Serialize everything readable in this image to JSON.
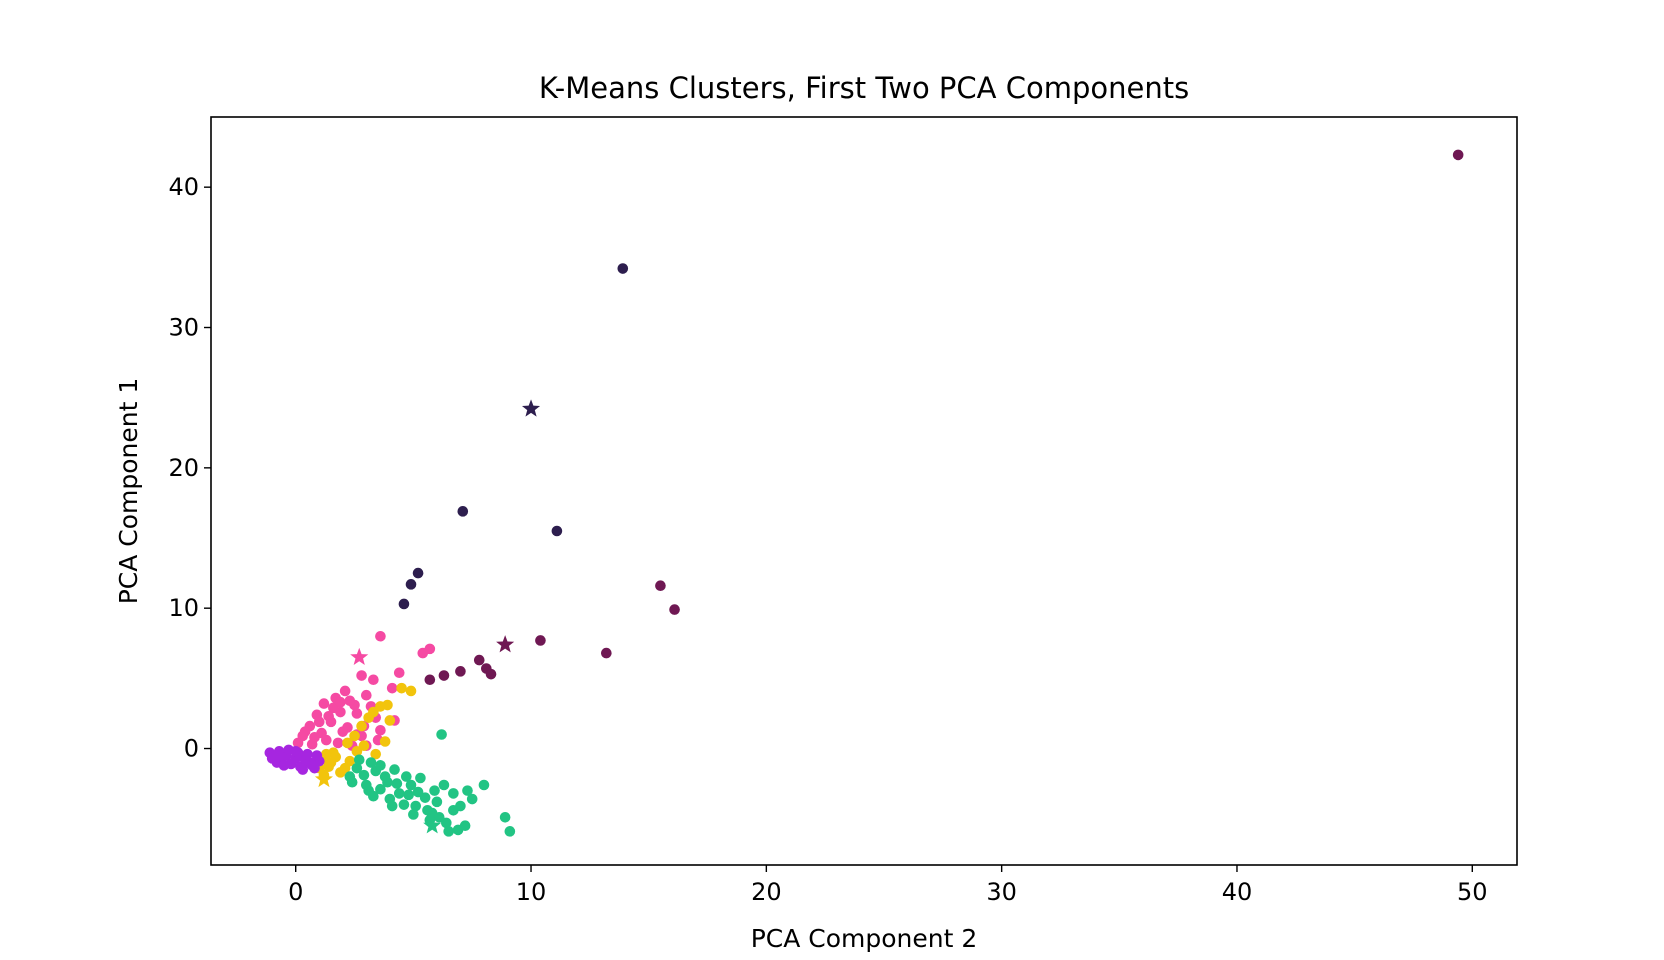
{
  "chart_data": {
    "type": "scatter",
    "title": "K-Means Clusters, First Two PCA Components",
    "xlabel": "PCA Component 2",
    "ylabel": "PCA Component 1",
    "xlim": [
      -3.6,
      51.9
    ],
    "ylim": [
      -8.3,
      45.0
    ],
    "xticks": [
      0,
      10,
      20,
      30,
      40,
      50
    ],
    "yticks": [
      0,
      10,
      20,
      30,
      40
    ],
    "grid": false,
    "legend": "none",
    "series": [
      {
        "color": "#2d1e4e",
        "points": [
          [
            13.9,
            34.2
          ],
          [
            7.1,
            16.9
          ],
          [
            11.1,
            15.5
          ],
          [
            5.2,
            12.5
          ],
          [
            4.9,
            11.7
          ],
          [
            4.6,
            10.3
          ]
        ],
        "centroid": [
          10.0,
          24.2
        ]
      },
      {
        "color": "#6f1853",
        "points": [
          [
            49.4,
            42.3
          ],
          [
            15.5,
            11.6
          ],
          [
            16.1,
            9.9
          ],
          [
            10.4,
            7.7
          ],
          [
            13.2,
            6.8
          ],
          [
            7.8,
            6.3
          ],
          [
            8.1,
            5.7
          ],
          [
            8.3,
            5.3
          ],
          [
            7.0,
            5.5
          ],
          [
            6.3,
            5.2
          ],
          [
            5.7,
            4.9
          ]
        ],
        "centroid": [
          8.9,
          7.4
        ]
      },
      {
        "color": "#f54aa3",
        "points": [
          [
            3.6,
            8.0
          ],
          [
            5.7,
            7.1
          ],
          [
            5.4,
            6.8
          ],
          [
            4.4,
            5.4
          ],
          [
            2.8,
            5.2
          ],
          [
            3.3,
            4.9
          ],
          [
            4.1,
            4.3
          ],
          [
            3.0,
            3.8
          ],
          [
            2.1,
            4.1
          ],
          [
            1.7,
            3.6
          ],
          [
            2.5,
            3.1
          ],
          [
            1.2,
            3.2
          ],
          [
            1.9,
            2.6
          ],
          [
            3.4,
            2.2
          ],
          [
            4.2,
            2.0
          ],
          [
            0.9,
            2.4
          ],
          [
            1.5,
            1.9
          ],
          [
            2.2,
            1.5
          ],
          [
            0.6,
            1.6
          ],
          [
            1.1,
            1.1
          ],
          [
            2.8,
            0.9
          ],
          [
            3.5,
            0.6
          ],
          [
            0.3,
            0.9
          ],
          [
            1.8,
            0.4
          ],
          [
            2.4,
            0.2
          ],
          [
            0.7,
            0.3
          ],
          [
            1.3,
            0.6
          ],
          [
            3.0,
            0.2
          ],
          [
            0.1,
            0.4
          ],
          [
            2.0,
            1.2
          ],
          [
            1.6,
            2.9
          ],
          [
            2.6,
            2.5
          ],
          [
            0.4,
            1.2
          ],
          [
            1.0,
            1.9
          ],
          [
            2.9,
            1.6
          ],
          [
            3.2,
            3.0
          ],
          [
            2.3,
            3.4
          ],
          [
            1.4,
            2.3
          ],
          [
            0.8,
            0.8
          ],
          [
            2.6,
            1.0
          ],
          [
            1.9,
            3.3
          ],
          [
            3.6,
            1.3
          ]
        ],
        "centroid": [
          2.7,
          6.5
        ]
      },
      {
        "color": "#f2c40c",
        "points": [
          [
            4.5,
            4.3
          ],
          [
            4.9,
            4.1
          ],
          [
            3.6,
            3.0
          ],
          [
            3.9,
            3.1
          ],
          [
            3.3,
            2.6
          ],
          [
            4.0,
            2.0
          ],
          [
            3.8,
            0.5
          ],
          [
            2.5,
            0.9
          ],
          [
            3.4,
            -0.4
          ],
          [
            2.3,
            -0.9
          ],
          [
            1.7,
            -0.6
          ],
          [
            1.1,
            -0.8
          ],
          [
            1.4,
            -1.3
          ],
          [
            1.9,
            -1.7
          ],
          [
            1.2,
            -1.9
          ],
          [
            2.6,
            -0.2
          ],
          [
            2.9,
            0.2
          ],
          [
            1.6,
            -0.3
          ],
          [
            2.1,
            -1.4
          ],
          [
            1.0,
            -1.4
          ],
          [
            1.5,
            -1.0
          ],
          [
            2.8,
            1.6
          ],
          [
            3.1,
            2.2
          ],
          [
            2.2,
            0.4
          ],
          [
            1.3,
            -0.4
          ],
          [
            0.9,
            -1.1
          ]
        ],
        "centroid": [
          1.2,
          -2.2
        ]
      },
      {
        "color": "#22c484",
        "points": [
          [
            6.2,
            1.0
          ],
          [
            9.1,
            -5.9
          ],
          [
            8.9,
            -4.9
          ],
          [
            8.0,
            -2.6
          ],
          [
            7.5,
            -3.6
          ],
          [
            7.3,
            -3.0
          ],
          [
            7.0,
            -4.1
          ],
          [
            6.7,
            -4.4
          ],
          [
            6.4,
            -5.3
          ],
          [
            6.9,
            -5.8
          ],
          [
            6.5,
            -5.9
          ],
          [
            7.2,
            -5.5
          ],
          [
            5.8,
            -4.6
          ],
          [
            6.0,
            -3.8
          ],
          [
            5.5,
            -3.5
          ],
          [
            4.9,
            -2.6
          ],
          [
            5.2,
            -3.1
          ],
          [
            4.7,
            -2.0
          ],
          [
            4.4,
            -3.2
          ],
          [
            4.2,
            -1.5
          ],
          [
            3.9,
            -2.4
          ],
          [
            3.6,
            -2.9
          ],
          [
            3.2,
            -1.0
          ],
          [
            2.9,
            -1.9
          ],
          [
            2.6,
            -1.4
          ],
          [
            2.3,
            -2.0
          ],
          [
            3.0,
            -2.6
          ],
          [
            3.4,
            -1.6
          ],
          [
            4.0,
            -3.6
          ],
          [
            4.6,
            -4.0
          ],
          [
            5.1,
            -4.1
          ],
          [
            5.6,
            -4.4
          ],
          [
            6.1,
            -4.9
          ],
          [
            6.7,
            -3.2
          ],
          [
            5.3,
            -2.1
          ],
          [
            4.8,
            -3.3
          ],
          [
            3.8,
            -2.0
          ],
          [
            3.1,
            -3.0
          ],
          [
            2.7,
            -0.8
          ],
          [
            3.6,
            -1.2
          ],
          [
            4.3,
            -2.5
          ],
          [
            5.9,
            -3.0
          ],
          [
            6.3,
            -2.6
          ],
          [
            2.4,
            -2.4
          ],
          [
            3.3,
            -3.4
          ],
          [
            4.1,
            -4.1
          ],
          [
            5.0,
            -4.7
          ],
          [
            5.7,
            -5.1
          ]
        ],
        "centroid": [
          5.8,
          -5.5
        ]
      },
      {
        "color": "#a626e0",
        "points": [
          [
            -1.1,
            -0.3
          ],
          [
            -0.9,
            -0.6
          ],
          [
            -0.7,
            -0.2
          ],
          [
            -0.6,
            -0.9
          ],
          [
            -0.4,
            -0.5
          ],
          [
            -0.2,
            -1.1
          ],
          [
            0.0,
            -0.7
          ],
          [
            0.2,
            -1.3
          ],
          [
            0.4,
            -0.8
          ],
          [
            0.6,
            -1.0
          ],
          [
            0.8,
            -1.4
          ],
          [
            1.0,
            -0.9
          ],
          [
            -0.8,
            -1.0
          ],
          [
            -0.3,
            -0.1
          ],
          [
            0.1,
            -0.3
          ],
          [
            0.5,
            -0.4
          ],
          [
            0.9,
            -0.5
          ],
          [
            -0.5,
            -1.2
          ],
          [
            0.3,
            -1.5
          ],
          [
            0.7,
            -1.2
          ],
          [
            -1.0,
            -0.7
          ],
          [
            0.0,
            -0.2
          ]
        ],
        "centroid": [
          -0.7,
          -0.5
        ]
      }
    ]
  }
}
